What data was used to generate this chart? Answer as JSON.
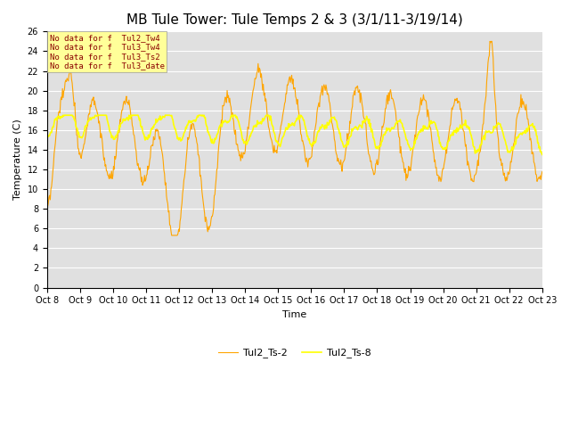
{
  "title": "MB Tule Tower: Tule Temps 2 & 3 (3/1/11-3/19/14)",
  "xlabel": "Time",
  "ylabel": "Temperature (C)",
  "ylim": [
    0,
    26
  ],
  "yticks": [
    0,
    2,
    4,
    6,
    8,
    10,
    12,
    14,
    16,
    18,
    20,
    22,
    24,
    26
  ],
  "x_labels": [
    "Oct 8",
    "Oct 9",
    "Oct 10",
    "Oct 11",
    "Oct 12",
    "Oct 13",
    "Oct 14",
    "Oct 15",
    "Oct 16",
    "Oct 17",
    "Oct 18",
    "Oct 19",
    "Oct 20",
    "Oct 21",
    "Oct 22",
    "Oct 23"
  ],
  "legend_labels": [
    "Tul2_Ts-2",
    "Tul2_Ts-8"
  ],
  "line1_color": "#FFA500",
  "line2_color": "#FFFF00",
  "bg_color": "#E0E0E0",
  "watermark_text": [
    "No data for f  Tul2_Tw4",
    "No data for f  Tul3_Tw4",
    "No data for f  Tul3_Ts2",
    "No data for f  Tul3_date"
  ],
  "watermark_color": "#8B0000",
  "watermark_bg": "#FFFF99",
  "title_fontsize": 11,
  "axis_label_fontsize": 8,
  "tick_label_fontsize": 7
}
